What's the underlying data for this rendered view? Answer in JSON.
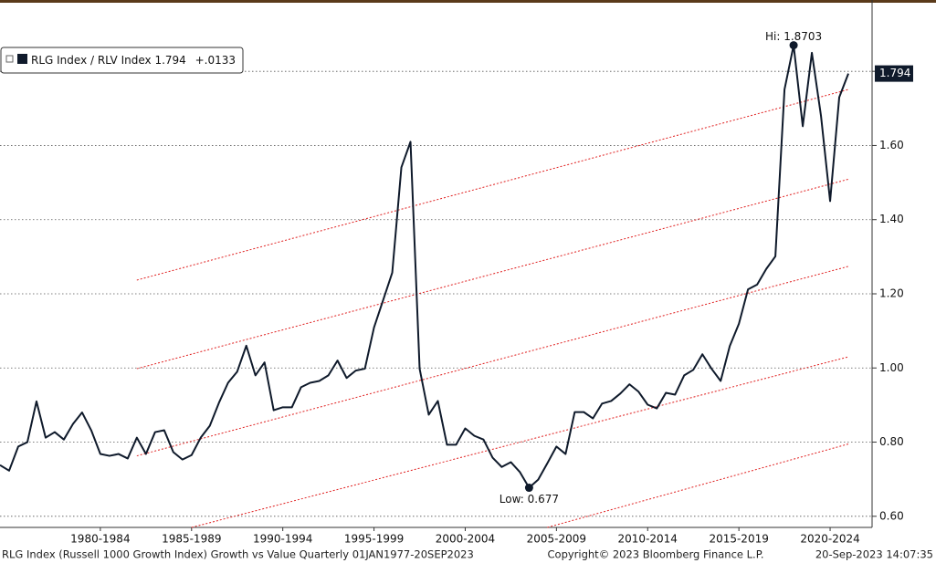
{
  "chart_data": {
    "type": "line",
    "series": [
      {
        "name": "RLG Index / RLV Index",
        "color": "#0f1a2b",
        "values": [
          0.738,
          0.723,
          0.788,
          0.8,
          0.91,
          0.812,
          0.827,
          0.807,
          0.849,
          0.88,
          0.832,
          0.768,
          0.763,
          0.768,
          0.756,
          0.812,
          0.768,
          0.827,
          0.832,
          0.773,
          0.753,
          0.765,
          0.812,
          0.844,
          0.906,
          0.96,
          0.99,
          1.06,
          0.98,
          1.015,
          0.886,
          0.894,
          0.894,
          0.948,
          0.96,
          0.965,
          0.98,
          1.02,
          0.973,
          0.993,
          0.998,
          1.109,
          1.183,
          1.257,
          1.541,
          1.61,
          0.998,
          0.874,
          0.911,
          0.793,
          0.793,
          0.837,
          0.817,
          0.807,
          0.758,
          0.733,
          0.746,
          0.719,
          0.677,
          0.699,
          0.743,
          0.788,
          0.768,
          0.881,
          0.881,
          0.864,
          0.904,
          0.911,
          0.931,
          0.956,
          0.936,
          0.901,
          0.891,
          0.933,
          0.928,
          0.98,
          0.995,
          1.037,
          0.998,
          0.965,
          1.059,
          1.119,
          1.212,
          1.225,
          1.267,
          1.301,
          1.751,
          1.8703,
          1.652,
          1.85,
          1.68,
          1.45,
          1.73,
          1.794
        ]
      }
    ],
    "x": [
      1977,
      1977.5,
      1978,
      1978.5,
      1979,
      1979.5,
      1980,
      1980.5,
      1981,
      1981.5,
      1982,
      1982.5,
      1983,
      1983.5,
      1984,
      1984.5,
      1985,
      1985.5,
      1986,
      1986.5,
      1987,
      1987.5,
      1988,
      1988.5,
      1989,
      1989.5,
      1990,
      1990.5,
      1991,
      1991.5,
      1992,
      1992.5,
      1993,
      1993.5,
      1994,
      1994.5,
      1995,
      1995.5,
      1996,
      1996.5,
      1997,
      1997.5,
      1998,
      1998.5,
      1999,
      1999.5,
      2000,
      2000.5,
      2001,
      2001.5,
      2002,
      2002.5,
      2003,
      2003.5,
      2004,
      2004.5,
      2005,
      2005.5,
      2006,
      2006.5,
      2007,
      2007.5,
      2008,
      2008.5,
      2009,
      2009.5,
      2010,
      2010.5,
      2011,
      2011.5,
      2012,
      2012.5,
      2013,
      2013.5,
      2014,
      2014.5,
      2015,
      2015.5,
      2016,
      2016.5,
      2017,
      2017.5,
      2018,
      2018.5,
      2019,
      2019.5,
      2020,
      2020.5,
      2021,
      2021.5,
      2022,
      2022.5,
      2023,
      2023.5
    ],
    "legend_change": "+.0133",
    "xlim": [
      1977,
      2024.8
    ],
    "xticks": [
      {
        "value": 1982.5,
        "label": "1980-1984"
      },
      {
        "value": 1987.5,
        "label": "1985-1989"
      },
      {
        "value": 1992.5,
        "label": "1990-1994"
      },
      {
        "value": 1997.5,
        "label": "1995-1999"
      },
      {
        "value": 2002.5,
        "label": "2000-2004"
      },
      {
        "value": 2007.5,
        "label": "2005-2009"
      },
      {
        "value": 2012.5,
        "label": "2010-2014"
      },
      {
        "value": 2017.5,
        "label": "2015-2019"
      },
      {
        "value": 2022.5,
        "label": "2020-2024"
      }
    ],
    "ylim": [
      0.57,
      1.985
    ],
    "yticks": [
      {
        "value": 0.6,
        "label": "0.60"
      },
      {
        "value": 0.8,
        "label": "0.80"
      },
      {
        "value": 1.0,
        "label": "1.00"
      },
      {
        "value": 1.2,
        "label": "1.20"
      },
      {
        "value": 1.4,
        "label": "1.40"
      },
      {
        "value": 1.6,
        "label": "1.60"
      },
      {
        "value": 1.8,
        "label": "1.80"
      }
    ],
    "grid": true,
    "annotations": [
      {
        "text": "Hi: 1.8703",
        "x": 2020.5,
        "y": 1.8703
      },
      {
        "text": "Low: 0.677",
        "x": 2006,
        "y": 0.677
      }
    ],
    "trend_lines": [
      {
        "color": "#e02020",
        "x": [
          1984.5,
          2023.5
        ],
        "y": [
          1.237,
          1.751
        ]
      },
      {
        "color": "#e02020",
        "x": [
          1984.5,
          2023.5
        ],
        "y": [
          0.998,
          1.509
        ]
      },
      {
        "color": "#e02020",
        "x": [
          1984.5,
          2023.5
        ],
        "y": [
          0.763,
          1.274
        ]
      },
      {
        "color": "#e02020",
        "x": [
          1987.5,
          2023.5
        ],
        "y": [
          0.57,
          1.03
        ]
      },
      {
        "color": "#e02020",
        "x": [
          2007.0,
          2023.5
        ],
        "y": [
          0.57,
          0.795
        ]
      }
    ],
    "footer": {
      "left": "RLG Index (Russell 1000 Growth Index) Growth vs Value  Quarterly 01JAN1977-20SEP2023",
      "center": "Copyright© 2023 Bloomberg Finance L.P.",
      "right": "20-Sep-2023 14:07:35"
    }
  }
}
